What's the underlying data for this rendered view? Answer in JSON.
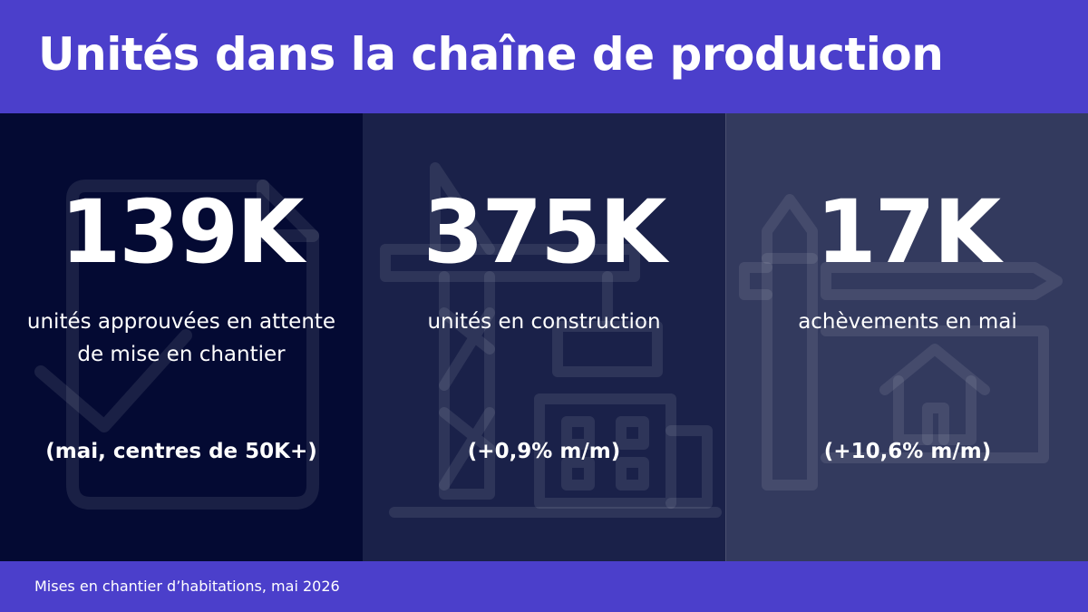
{
  "title": "Unités dans la chaîne de production",
  "cards": [
    {
      "value": "139K",
      "description": "unités approuvées en attente de mise en chantier",
      "note": "(mai, centres de 50K+)",
      "icon": "approved-document-icon"
    },
    {
      "value": "375K",
      "description": "unités en construction",
      "note": "(+0,9% m/m)",
      "icon": "crane-building-icon"
    },
    {
      "value": "17K",
      "description": "achèvements en mai",
      "note": "(+10,6% m/m)",
      "icon": "pencil-house-plan-icon"
    }
  ],
  "footer": {
    "source": "Mises en chantier d’habitations, mai 2026"
  },
  "colors": {
    "accent": "#4b3fcb",
    "panel_1": "#040a33",
    "panel_2": "#1a2149",
    "panel_3": "#333a5e",
    "text": "#ffffff"
  }
}
